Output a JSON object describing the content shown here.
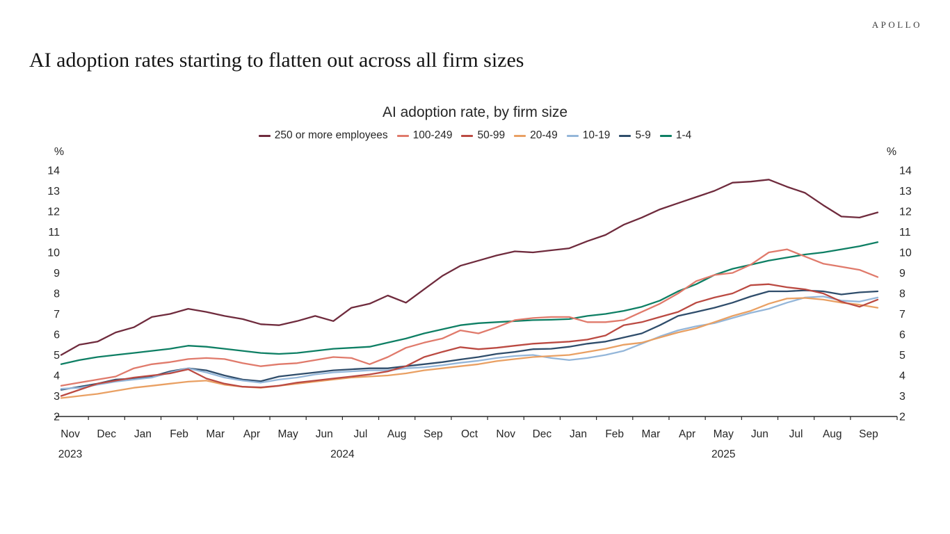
{
  "brand": "APOLLO",
  "page_title": "AI adoption rates starting to flatten out across all firm sizes",
  "colors": {
    "axis": "#262626",
    "text": "#262626",
    "title": "#141414"
  },
  "chart_data": {
    "type": "line",
    "title": "AI adoption rate, by firm size",
    "y_unit": "%",
    "ylim": [
      2,
      14
    ],
    "y_ticks": [
      14,
      13,
      12,
      11,
      10,
      9,
      8,
      7,
      6,
      5,
      4,
      3,
      2
    ],
    "grid": false,
    "legend_position": "top",
    "x_frequency": "biweekly, 2 points per month",
    "x_months": [
      "Nov",
      "Dec",
      "Jan",
      "Feb",
      "Mar",
      "Apr",
      "May",
      "Jun",
      "Jul",
      "Aug",
      "Sep",
      "Oct",
      "Nov",
      "Dec",
      "Jan",
      "Feb",
      "Mar",
      "Apr",
      "May",
      "Jun",
      "Jul",
      "Aug",
      "Sep"
    ],
    "x_years": [
      {
        "label": "2023",
        "from_month": 0,
        "to_month": 0
      },
      {
        "label": "2024",
        "from_month": 2,
        "to_month": 13
      },
      {
        "label": "2025",
        "from_month": 14,
        "to_month": 22
      }
    ],
    "series": [
      {
        "name": "250 or more employees",
        "color": "#6f2b3d",
        "values": [
          5.0,
          5.5,
          5.65,
          6.1,
          6.35,
          6.85,
          7.0,
          7.25,
          7.1,
          6.9,
          6.75,
          6.5,
          6.45,
          6.65,
          6.9,
          6.65,
          7.3,
          7.5,
          7.9,
          7.55,
          8.2,
          8.85,
          9.35,
          9.6,
          9.85,
          10.05,
          10.0,
          10.1,
          10.2,
          10.55,
          10.85,
          11.35,
          11.7,
          12.1,
          12.4,
          12.7,
          13.0,
          13.4,
          13.45,
          13.55,
          13.2,
          12.9,
          12.3,
          11.75,
          11.7,
          11.95
        ]
      },
      {
        "name": "100-249",
        "color": "#e07a6b",
        "values": [
          3.5,
          3.65,
          3.8,
          3.95,
          4.35,
          4.55,
          4.65,
          4.8,
          4.85,
          4.8,
          4.6,
          4.45,
          4.55,
          4.6,
          4.75,
          4.9,
          4.85,
          4.55,
          4.9,
          5.35,
          5.6,
          5.8,
          6.2,
          6.05,
          6.35,
          6.7,
          6.8,
          6.85,
          6.85,
          6.6,
          6.6,
          6.7,
          7.1,
          7.5,
          8.0,
          8.6,
          8.9,
          9.0,
          9.4,
          10.0,
          10.15,
          9.8,
          9.45,
          9.3,
          9.15,
          8.8
        ]
      },
      {
        "name": "50-99",
        "color": "#bb4a42",
        "values": [
          3.0,
          3.3,
          3.6,
          3.75,
          3.9,
          4.0,
          4.1,
          4.3,
          3.85,
          3.6,
          3.45,
          3.42,
          3.5,
          3.65,
          3.75,
          3.85,
          3.95,
          4.05,
          4.2,
          4.45,
          4.9,
          5.15,
          5.38,
          5.28,
          5.35,
          5.45,
          5.55,
          5.6,
          5.65,
          5.75,
          5.95,
          6.45,
          6.6,
          6.85,
          7.1,
          7.55,
          7.8,
          8.0,
          8.4,
          8.45,
          8.3,
          8.2,
          8.0,
          7.6,
          7.35,
          7.7
        ]
      },
      {
        "name": "20-49",
        "color": "#e9a063",
        "values": [
          2.9,
          3.0,
          3.1,
          3.25,
          3.4,
          3.5,
          3.6,
          3.7,
          3.75,
          3.55,
          3.45,
          3.4,
          3.5,
          3.6,
          3.7,
          3.8,
          3.9,
          3.95,
          4.0,
          4.1,
          4.25,
          4.35,
          4.45,
          4.55,
          4.7,
          4.8,
          4.9,
          4.95,
          5.0,
          5.15,
          5.3,
          5.5,
          5.6,
          5.85,
          6.1,
          6.3,
          6.6,
          6.9,
          7.15,
          7.5,
          7.75,
          7.78,
          7.7,
          7.55,
          7.45,
          7.3
        ]
      },
      {
        "name": "10-19",
        "color": "#94b6d9",
        "values": [
          3.35,
          3.4,
          3.55,
          3.7,
          3.8,
          3.9,
          4.15,
          4.35,
          4.15,
          3.9,
          3.75,
          3.65,
          3.8,
          3.9,
          4.05,
          4.15,
          4.2,
          4.25,
          4.25,
          4.35,
          4.4,
          4.5,
          4.62,
          4.72,
          4.85,
          4.95,
          5.0,
          4.85,
          4.75,
          4.85,
          5.0,
          5.2,
          5.55,
          5.9,
          6.2,
          6.4,
          6.55,
          6.8,
          7.05,
          7.25,
          7.55,
          7.8,
          7.85,
          7.65,
          7.6,
          7.8
        ]
      },
      {
        "name": "5-9",
        "color": "#2f4d6b",
        "values": [
          3.3,
          3.45,
          3.6,
          3.8,
          3.85,
          3.95,
          4.2,
          4.35,
          4.25,
          4.0,
          3.8,
          3.72,
          3.95,
          4.05,
          4.15,
          4.25,
          4.3,
          4.35,
          4.35,
          4.45,
          4.55,
          4.65,
          4.78,
          4.9,
          5.05,
          5.15,
          5.28,
          5.3,
          5.4,
          5.55,
          5.65,
          5.85,
          6.05,
          6.45,
          6.9,
          7.1,
          7.3,
          7.55,
          7.85,
          8.1,
          8.1,
          8.15,
          8.1,
          7.95,
          8.05,
          8.1
        ]
      },
      {
        "name": "1-4",
        "color": "#0e7f64",
        "values": [
          4.55,
          4.75,
          4.9,
          5.0,
          5.1,
          5.2,
          5.3,
          5.45,
          5.4,
          5.3,
          5.2,
          5.1,
          5.05,
          5.1,
          5.2,
          5.3,
          5.35,
          5.4,
          5.6,
          5.8,
          6.05,
          6.25,
          6.45,
          6.55,
          6.6,
          6.65,
          6.7,
          6.72,
          6.75,
          6.9,
          7.0,
          7.15,
          7.35,
          7.65,
          8.1,
          8.45,
          8.9,
          9.2,
          9.4,
          9.6,
          9.75,
          9.9,
          10.0,
          10.15,
          10.3,
          10.5
        ]
      }
    ]
  }
}
